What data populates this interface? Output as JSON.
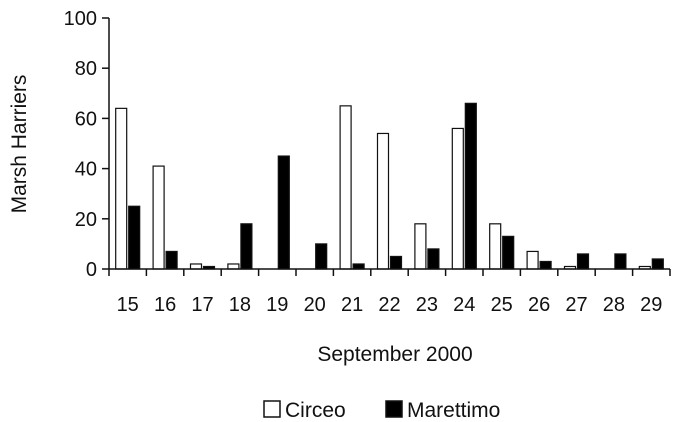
{
  "chart_data": {
    "type": "bar",
    "xlabel": "September 2000",
    "ylabel": "Marsh Harriers",
    "ylim": [
      0,
      100
    ],
    "yticks": [
      0,
      20,
      40,
      60,
      80,
      100
    ],
    "grid": false,
    "legend_position": "bottom",
    "categories": [
      "15",
      "16",
      "17",
      "18",
      "19",
      "20",
      "21",
      "22",
      "23",
      "24",
      "25",
      "26",
      "27",
      "28",
      "29"
    ],
    "series": [
      {
        "name": "Circeo",
        "color": "#ffffff",
        "values": [
          64,
          41,
          2,
          2,
          0,
          0,
          65,
          54,
          18,
          56,
          18,
          7,
          1,
          0,
          1
        ]
      },
      {
        "name": "Marettimo",
        "color": "#000000",
        "values": [
          25,
          7,
          1,
          18,
          45,
          10,
          2,
          5,
          8,
          66,
          13,
          3,
          6,
          6,
          4
        ]
      }
    ]
  }
}
